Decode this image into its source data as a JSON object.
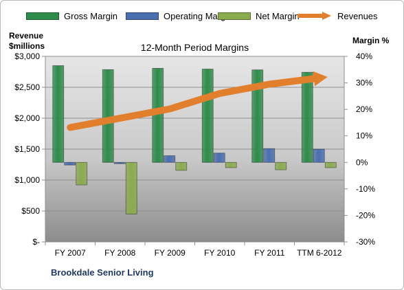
{
  "chart_data": {
    "type": "bar",
    "title": "12-Month Period Margins",
    "categories": [
      "FY 2007",
      "FY 2008",
      "FY 2009",
      "FY 2010",
      "FY 2011",
      "TTM 6-2012"
    ],
    "series": [
      {
        "name": "Gross Margin",
        "axis": "right",
        "unit": "%",
        "values": [
          36.5,
          35.0,
          35.5,
          35.2,
          34.9,
          34.0
        ],
        "color": "#2e8b4a"
      },
      {
        "name": "Operating Margin",
        "axis": "right",
        "unit": "%",
        "values": [
          -1.0,
          -0.5,
          2.5,
          3.5,
          5.2,
          5.0
        ],
        "color": "#4a6fb0"
      },
      {
        "name": "Net Margin",
        "axis": "right",
        "unit": "%",
        "values": [
          -8.5,
          -19.5,
          -3.0,
          -2.0,
          -2.8,
          -2.0
        ],
        "color": "#8aab4e"
      },
      {
        "name": "Revenues",
        "axis": "left",
        "type": "line",
        "unit": "$millions",
        "values": [
          1850,
          2000,
          2150,
          2400,
          2550,
          2650
        ],
        "color": "#e27f2c"
      }
    ],
    "ylabel": "Revenue\n$millions",
    "ylabel_lines": [
      "Revenue",
      "$millions"
    ],
    "y2label": "Margin %",
    "ylim": [
      0,
      3000
    ],
    "y2lim": [
      -30,
      40
    ],
    "yticks": [
      "$-",
      "$500",
      "$1,000",
      "$1,500",
      "$2,000",
      "$2,500",
      "$3,000"
    ],
    "y2ticks": [
      "-30%",
      "-20%",
      "-10%",
      "0%",
      "10%",
      "20%",
      "30%",
      "40%"
    ],
    "legend_position": "top",
    "grid": true
  },
  "footer": "Brookdale Senior Living"
}
